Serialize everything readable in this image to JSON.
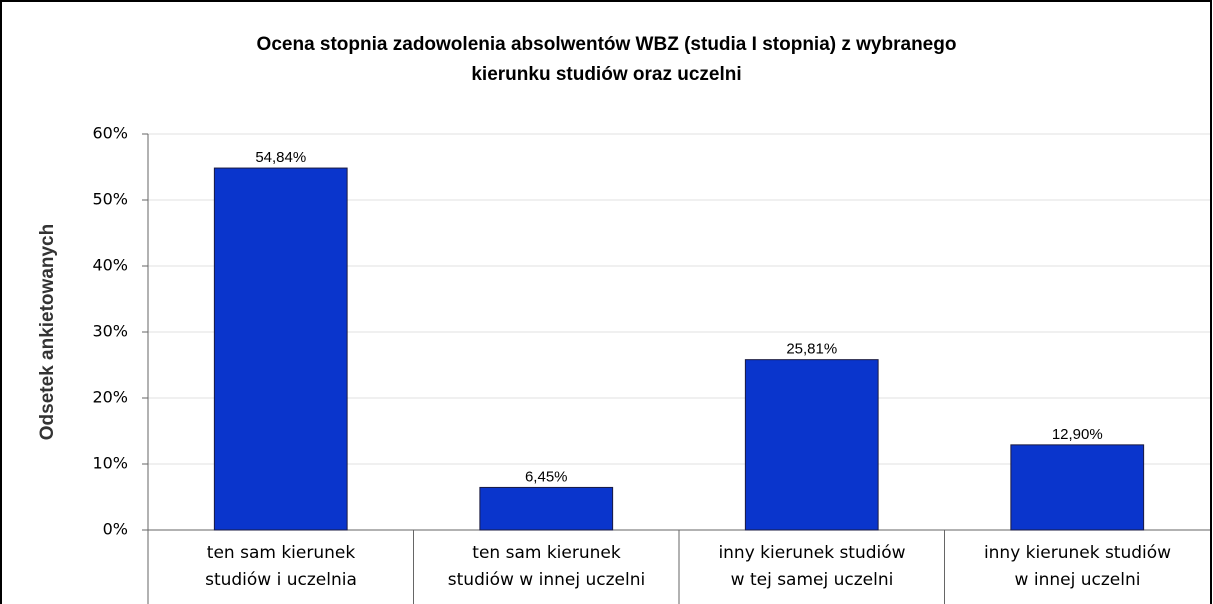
{
  "chart_data": {
    "type": "bar",
    "title": "Ocena stopnia zadowolenia absolwentów WBZ (studia I stopnia) z wybranego\nkierunku studiów oraz uczelni",
    "y_label": "Odsetek ankietowanych",
    "categories": [
      "ten sam kierunek\nstudiów i uczelnia",
      "ten sam kierunek\nstudiów w innej uczelni",
      "inny kierunek studiów\nw tej samej uczelni",
      "inny kierunek studiów\nw innej uczelni"
    ],
    "values": [
      54.84,
      6.45,
      25.81,
      12.9
    ],
    "value_labels": [
      "54,84%",
      "6,45%",
      "25,81%",
      "12,90%"
    ],
    "color": "#0a35cc",
    "ylim": [
      0,
      60
    ],
    "yticks": [
      {
        "value": 0,
        "label": "0%"
      },
      {
        "value": 10,
        "label": "10%"
      },
      {
        "value": 20,
        "label": "20%"
      },
      {
        "value": 30,
        "label": "30%"
      },
      {
        "value": 40,
        "label": "40%"
      },
      {
        "value": 50,
        "label": "50%"
      },
      {
        "value": 60,
        "label": "60%"
      }
    ],
    "grid": true
  }
}
